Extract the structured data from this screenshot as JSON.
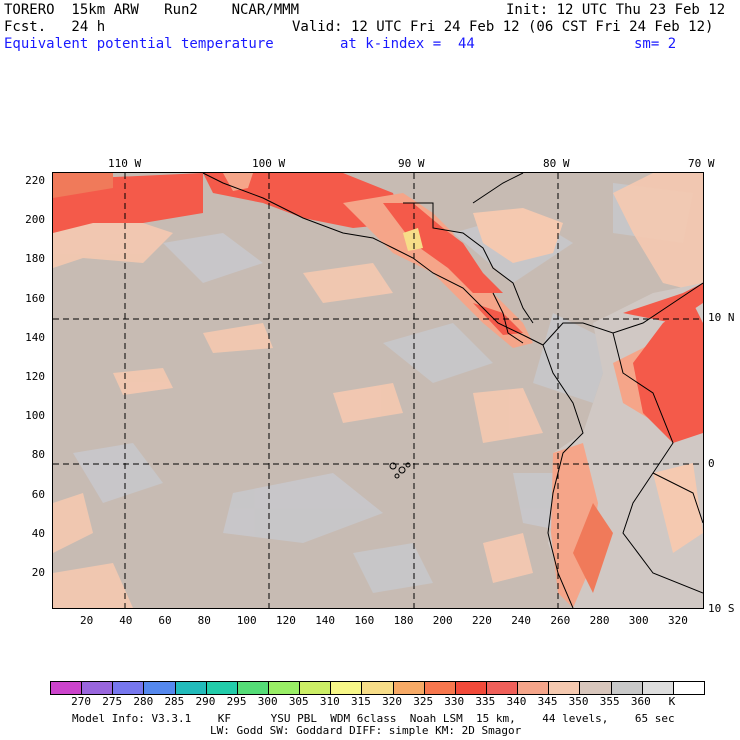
{
  "header": {
    "model": "TORERO  15km ARW   Run2    NCAR/MMM",
    "init": "Init: 12 UTC Thu 23 Feb 12",
    "fcst": "Fcst.   24 h",
    "valid": "Valid: 12 UTC Fri 24 Feb 12 (06 CST Fri 24 Feb 12)",
    "field": "Equivalent potential temperature",
    "level": "at k-index =  44",
    "smooth": "sm= 2"
  },
  "map": {
    "lon_labels": [
      "110 W",
      "100 W",
      "90 W",
      "80 W",
      "70 W"
    ],
    "lat_labels": [
      "10 N",
      "0",
      "10 S"
    ],
    "x_ticks": [
      "20",
      "40",
      "60",
      "80",
      "100",
      "120",
      "140",
      "160",
      "180",
      "200",
      "220",
      "240",
      "260",
      "280",
      "300",
      "320"
    ],
    "y_ticks": [
      "220",
      "200",
      "180",
      "160",
      "140",
      "120",
      "100",
      "80",
      "60",
      "40",
      "20"
    ],
    "background_color": "#c7bbb3",
    "colors": {
      "warm_light": "#f5c9b0",
      "warm_mid": "#f5a589",
      "warm_high": "#f45a4a",
      "hot": "#f07a5a",
      "grey": "#c8c8cc",
      "land_grey": "#d0c8c4"
    }
  },
  "colorbar": {
    "colors": [
      "#cc44cc",
      "#9966dd",
      "#7777ee",
      "#5588ee",
      "#22bbbb",
      "#22ccaa",
      "#55dd77",
      "#99ee66",
      "#ccee66",
      "#f7f788",
      "#f7dd88",
      "#f7aa66",
      "#f7774e",
      "#f24a3a",
      "#f0605a",
      "#f5a58a",
      "#f5c9b0",
      "#d8c6bc",
      "#c9c9c9",
      "#dedede",
      "#ffffff"
    ],
    "labels": [
      "270",
      "275",
      "280",
      "285",
      "290",
      "295",
      "300",
      "305",
      "310",
      "315",
      "320",
      "325",
      "330",
      "335",
      "340",
      "345",
      "350",
      "355",
      "360",
      "K"
    ]
  },
  "footer": {
    "line1": "Model Info: V3.3.1    KF      YSU PBL  WDM 6class  Noah LSM  15 km,    44 levels,    65 sec",
    "line2": "LW: Godd SW: Goddard DIFF: simple KM: 2D Smagor"
  }
}
